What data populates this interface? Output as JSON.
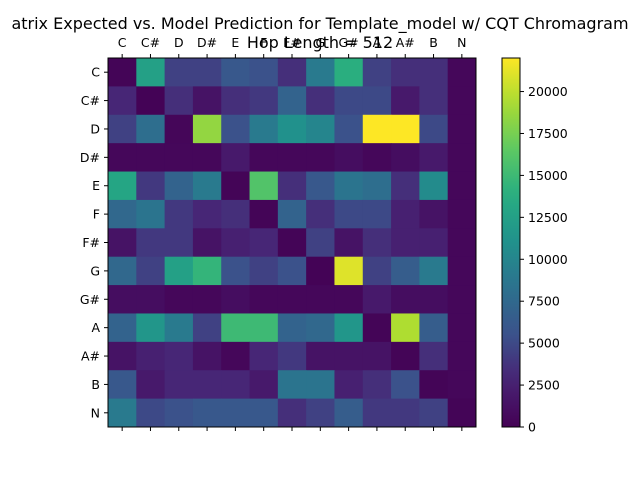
{
  "chart_data": {
    "type": "heatmap",
    "title_line1": "atrix Expected vs. Model Prediction for Template_model w/ CQT Chromagram",
    "title_line2": "Hop Length = 512",
    "x_labels": [
      "C",
      "C#",
      "D",
      "D#",
      "E",
      "F",
      "F#",
      "G",
      "G#",
      "A",
      "A#",
      "B",
      "N"
    ],
    "y_labels": [
      "C",
      "C#",
      "D",
      "D#",
      "E",
      "F",
      "F#",
      "G",
      "G#",
      "A",
      "A#",
      "B",
      "N"
    ],
    "colorbar": {
      "min": 0,
      "max": 22000,
      "ticks": [
        0,
        2500,
        5000,
        7500,
        10000,
        12500,
        15000,
        17500,
        20000
      ]
    },
    "colormap": "viridis",
    "values": [
      [
        300,
        12500,
        4500,
        4500,
        6000,
        5500,
        3500,
        9000,
        14000,
        4500,
        3500,
        3500,
        500
      ],
      [
        3000,
        200,
        3500,
        1500,
        3500,
        4000,
        7000,
        3500,
        5000,
        5000,
        2000,
        3500,
        500
      ],
      [
        4500,
        8000,
        400,
        18500,
        5500,
        9000,
        11000,
        10000,
        5500,
        22000,
        22000,
        5000,
        500
      ],
      [
        500,
        500,
        500,
        500,
        2000,
        500,
        500,
        500,
        1000,
        500,
        1000,
        2000,
        500
      ],
      [
        13000,
        4000,
        7000,
        9000,
        300,
        16000,
        3500,
        6000,
        8500,
        8000,
        3500,
        10500,
        500
      ],
      [
        7500,
        8500,
        4000,
        3000,
        3500,
        300,
        7000,
        3500,
        5000,
        5000,
        2500,
        1500,
        500
      ],
      [
        1500,
        4000,
        4000,
        1500,
        2500,
        3000,
        300,
        4500,
        1500,
        3500,
        2500,
        2500,
        500
      ],
      [
        7500,
        4500,
        12500,
        14500,
        5500,
        4500,
        5500,
        200,
        21000,
        4500,
        6500,
        9000,
        500
      ],
      [
        1000,
        1000,
        500,
        500,
        1000,
        500,
        500,
        500,
        500,
        2000,
        1000,
        1000,
        500
      ],
      [
        7000,
        11500,
        9000,
        4500,
        15000,
        15000,
        7000,
        7500,
        11500,
        300,
        19500,
        6500,
        500
      ],
      [
        1500,
        2500,
        3000,
        1500,
        500,
        3000,
        4000,
        1500,
        1500,
        1500,
        300,
        3500,
        500
      ],
      [
        6000,
        2000,
        3000,
        3000,
        3000,
        2000,
        8500,
        8500,
        2500,
        3500,
        5500,
        300,
        500
      ],
      [
        9000,
        5000,
        5500,
        6000,
        6000,
        6000,
        3500,
        4500,
        6500,
        4000,
        4000,
        4500,
        300
      ]
    ]
  }
}
